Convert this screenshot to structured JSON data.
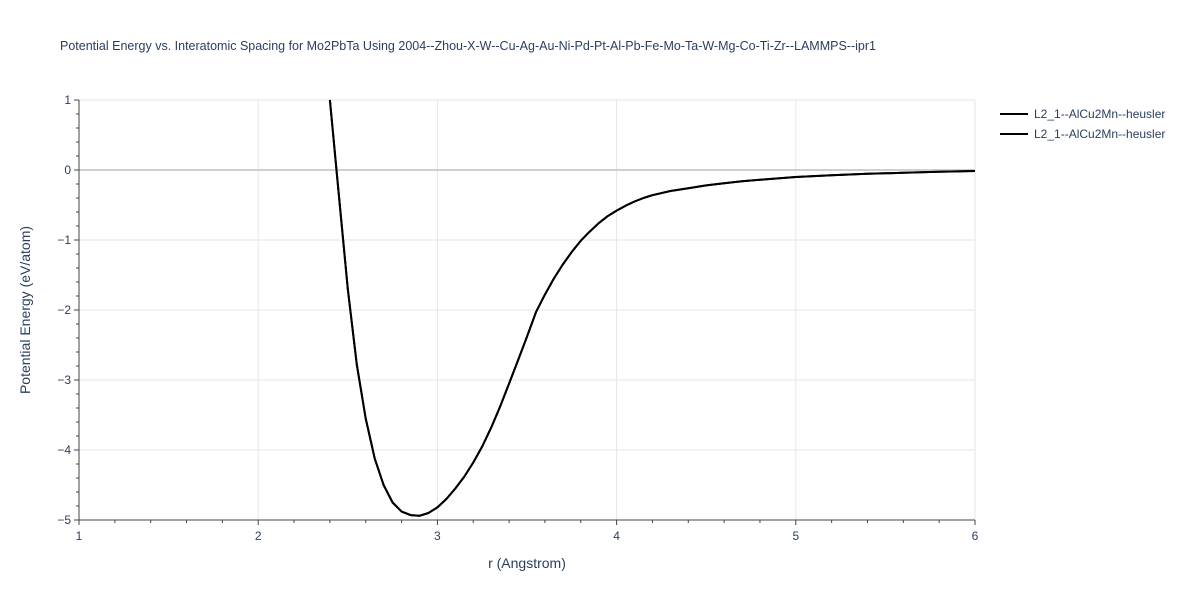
{
  "chart_data": {
    "type": "line",
    "title": "Potential Energy vs. Interatomic Spacing for Mo2PbTa Using 2004--Zhou-X-W--Cu-Ag-Au-Ni-Pd-Pt-Al-Pb-Fe-Mo-Ta-W-Mg-Co-Ti-Zr--LAMMPS--ipr1",
    "xlabel": "r (Angstrom)",
    "ylabel": "Potential Energy (eV/atom)",
    "xlim": [
      1,
      6
    ],
    "ylim": [
      -5,
      1
    ],
    "xticks": [
      1,
      2,
      3,
      4,
      5,
      6
    ],
    "xtick_labels": [
      "1",
      "2",
      "3",
      "4",
      "5",
      "6"
    ],
    "yticks": [
      1,
      0,
      -1,
      -2,
      -3,
      -4,
      -5
    ],
    "ytick_labels": [
      "1",
      "0",
      "−1",
      "−2",
      "−3",
      "−4",
      "−5"
    ],
    "grid": true,
    "legend_position": "top-right",
    "series": [
      {
        "name": "L2_1--AlCu2Mn--heusler",
        "color": "#000000",
        "x": [
          2.4,
          2.45,
          2.5,
          2.55,
          2.6,
          2.65,
          2.7,
          2.75,
          2.8,
          2.85,
          2.9,
          2.95,
          3.0,
          3.05,
          3.1,
          3.15,
          3.2,
          3.25,
          3.3,
          3.35,
          3.4,
          3.45,
          3.5,
          3.55,
          3.6,
          3.65,
          3.7,
          3.75,
          3.8,
          3.85,
          3.9,
          3.95,
          4.0,
          4.05,
          4.1,
          4.15,
          4.2,
          4.3,
          4.4,
          4.5,
          4.6,
          4.7,
          4.8,
          4.9,
          5.0,
          5.2,
          5.4,
          5.6,
          5.8,
          6.0
        ],
        "y": [
          1.0,
          -0.35,
          -1.7,
          -2.78,
          -3.55,
          -4.12,
          -4.5,
          -4.75,
          -4.88,
          -4.93,
          -4.94,
          -4.9,
          -4.82,
          -4.7,
          -4.55,
          -4.38,
          -4.18,
          -3.95,
          -3.68,
          -3.38,
          -3.05,
          -2.72,
          -2.38,
          -2.03,
          -1.78,
          -1.55,
          -1.35,
          -1.17,
          -1.01,
          -0.88,
          -0.76,
          -0.66,
          -0.58,
          -0.51,
          -0.45,
          -0.4,
          -0.36,
          -0.3,
          -0.26,
          -0.22,
          -0.19,
          -0.16,
          -0.14,
          -0.12,
          -0.1,
          -0.075,
          -0.055,
          -0.04,
          -0.025,
          -0.015
        ]
      },
      {
        "name": "L2_1--AlCu2Mn--heusler",
        "color": "#000000",
        "x": [
          2.4,
          2.45,
          2.5,
          2.55,
          2.6,
          2.65,
          2.7,
          2.75,
          2.8,
          2.85,
          2.9,
          2.95,
          3.0,
          3.05,
          3.1,
          3.15,
          3.2,
          3.25,
          3.3,
          3.35,
          3.4,
          3.45,
          3.5,
          3.55,
          3.6,
          3.65,
          3.7,
          3.75,
          3.8,
          3.85,
          3.9,
          3.95,
          4.0,
          4.05,
          4.1,
          4.15,
          4.2,
          4.3,
          4.4,
          4.5,
          4.6,
          4.7,
          4.8,
          4.9,
          5.0,
          5.2,
          5.4,
          5.6,
          5.8,
          6.0
        ],
        "y": [
          1.0,
          -0.35,
          -1.7,
          -2.78,
          -3.55,
          -4.12,
          -4.5,
          -4.75,
          -4.88,
          -4.93,
          -4.94,
          -4.9,
          -4.82,
          -4.7,
          -4.55,
          -4.38,
          -4.18,
          -3.95,
          -3.68,
          -3.38,
          -3.05,
          -2.72,
          -2.38,
          -2.03,
          -1.78,
          -1.55,
          -1.35,
          -1.17,
          -1.01,
          -0.88,
          -0.76,
          -0.66,
          -0.58,
          -0.51,
          -0.45,
          -0.4,
          -0.36,
          -0.3,
          -0.26,
          -0.22,
          -0.19,
          -0.16,
          -0.14,
          -0.12,
          -0.1,
          -0.075,
          -0.055,
          -0.04,
          -0.025,
          -0.015
        ]
      }
    ]
  }
}
